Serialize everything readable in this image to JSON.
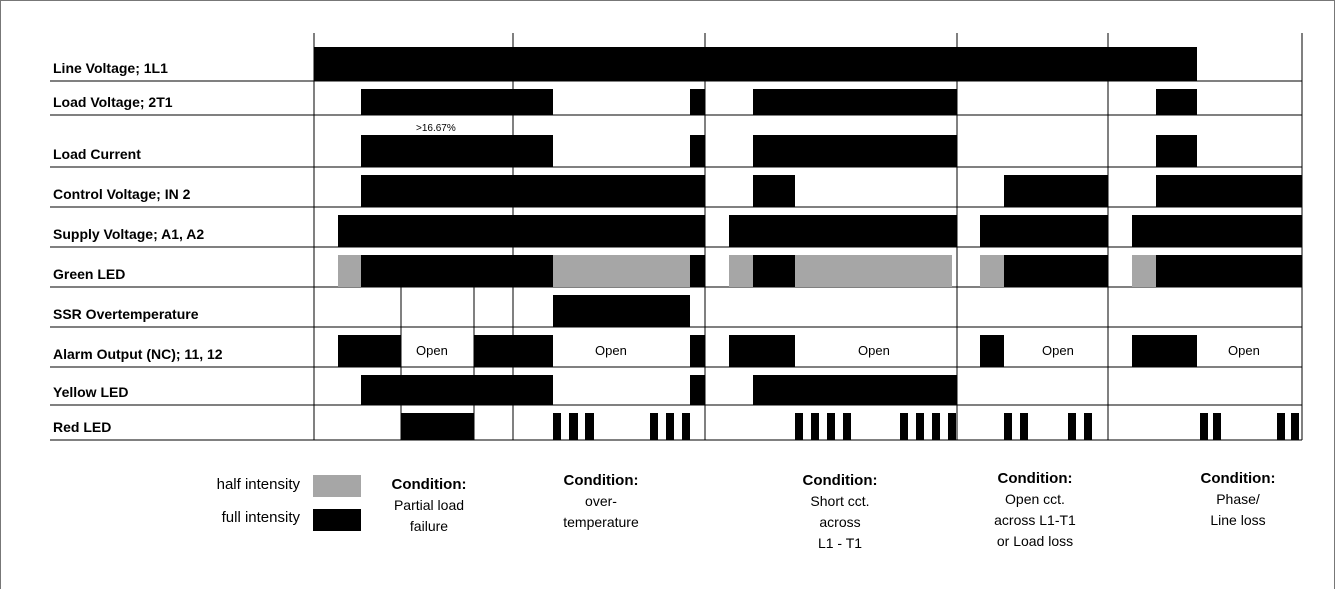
{
  "rows": [
    "Line Voltage; 1L1",
    "Load Voltage; 2T1",
    "Load Current",
    "Control Voltage; IN 2",
    "Supply Voltage; A1, A2",
    "Green LED",
    "SSR Overtemperature",
    "Alarm Output (NC); 11, 12",
    "Yellow LED",
    "Red LED"
  ],
  "open_label": "Open",
  "annotation": ">16.67%",
  "legend": {
    "half_label": "half intensity",
    "full_label": "full intensity",
    "half_color": "#a6a6a6",
    "full_color": "#000000"
  },
  "condition_title": "Condition:",
  "conditions": [
    {
      "lines": [
        "Partial load",
        "failure"
      ]
    },
    {
      "lines": [
        "over-",
        "temperature"
      ]
    },
    {
      "lines": [
        "Short cct.",
        "across",
        "L1 - T1"
      ]
    },
    {
      "lines": [
        "Open cct.",
        "across L1-T1",
        "or Load loss"
      ]
    },
    {
      "lines": [
        "Phase/",
        "Line loss"
      ]
    }
  ]
}
